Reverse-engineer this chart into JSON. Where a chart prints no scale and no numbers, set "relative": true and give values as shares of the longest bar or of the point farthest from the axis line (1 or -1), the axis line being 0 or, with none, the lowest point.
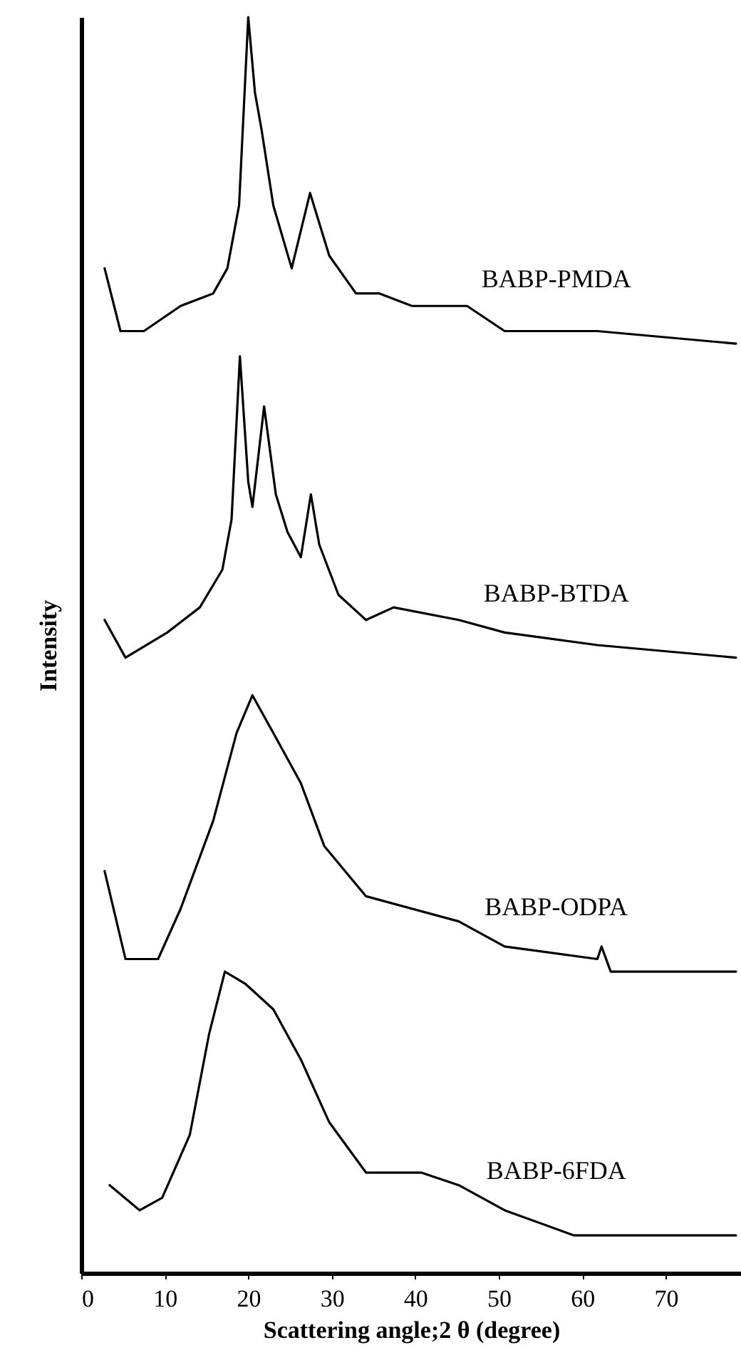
{
  "chart_data": {
    "type": "line",
    "xlabel": "Scattering angle;2 θ (degree)",
    "ylabel": "Intensity",
    "relative": true,
    "xlim": [
      0,
      79
    ],
    "xticks": [
      0,
      10,
      20,
      30,
      40,
      50,
      60,
      70
    ],
    "tick_labels": "x",
    "grid": false,
    "legend": false,
    "marker": "none",
    "line_style": "solid",
    "series": [
      {
        "name": "BABP-PMDA",
        "color": "#000000",
        "x": [
          2.8,
          4.7,
          7.5,
          11.9,
          15.8,
          17.5,
          18.9,
          20.0,
          20.8,
          21.6,
          23.0,
          25.2,
          27.4,
          29.7,
          32.9,
          35.7,
          39.6,
          46.2,
          50.7,
          61.8,
          78.4
        ],
        "values": [
          0.8,
          0.75,
          0.75,
          0.77,
          0.78,
          0.8,
          0.85,
          1.0,
          0.94,
          0.91,
          0.85,
          0.8,
          0.86,
          0.81,
          0.78,
          0.78,
          0.77,
          0.77,
          0.75,
          0.75,
          0.74
        ]
      },
      {
        "name": "BABP-BTDA",
        "color": "#000000",
        "x": [
          2.8,
          5.3,
          10.3,
          14.2,
          16.9,
          18.0,
          19.0,
          20.0,
          20.5,
          21.9,
          23.3,
          24.7,
          26.3,
          27.5,
          28.5,
          30.8,
          34.1,
          37.4,
          45.2,
          50.7,
          61.8,
          78.4
        ],
        "values": [
          0.52,
          0.49,
          0.51,
          0.53,
          0.56,
          0.6,
          0.73,
          0.63,
          0.61,
          0.69,
          0.62,
          0.59,
          0.57,
          0.62,
          0.58,
          0.54,
          0.52,
          0.53,
          0.52,
          0.51,
          0.5,
          0.49
        ]
      },
      {
        "name": "BABP-ODPA",
        "color": "#000000",
        "x": [
          2.8,
          5.3,
          9.2,
          11.9,
          15.8,
          18.6,
          20.5,
          23.0,
          26.3,
          29.1,
          34.1,
          45.2,
          50.7,
          61.8,
          62.3,
          63.4,
          78.4
        ],
        "values": [
          0.32,
          0.25,
          0.25,
          0.29,
          0.36,
          0.43,
          0.46,
          0.43,
          0.39,
          0.34,
          0.3,
          0.28,
          0.26,
          0.25,
          0.26,
          0.24,
          0.24
        ]
      },
      {
        "name": "BABP-6FDA",
        "color": "#000000",
        "x": [
          3.4,
          7.0,
          9.7,
          13.0,
          15.3,
          17.2,
          19.7,
          23.0,
          26.3,
          29.7,
          34.1,
          40.7,
          45.2,
          50.7,
          59.0,
          78.4
        ],
        "values": [
          0.07,
          0.05,
          0.06,
          0.11,
          0.19,
          0.24,
          0.23,
          0.21,
          0.17,
          0.12,
          0.08,
          0.08,
          0.07,
          0.05,
          0.03,
          0.03
        ]
      }
    ]
  }
}
